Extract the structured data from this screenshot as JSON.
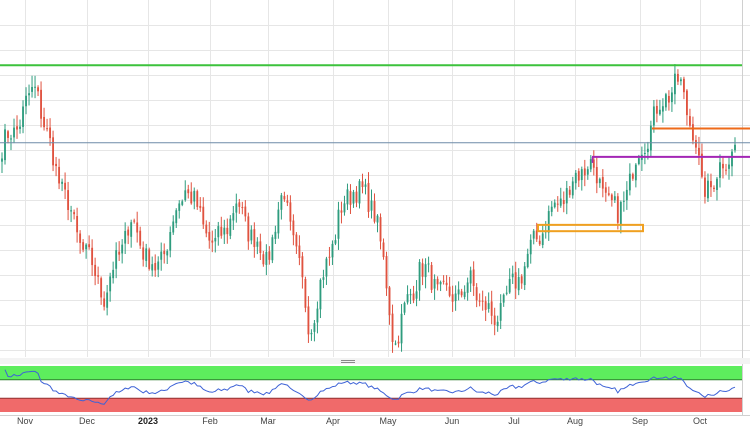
{
  "chart_data": {
    "type": "candlestick",
    "title": "",
    "xlabel": "",
    "ylabel": "",
    "x_axis_labels": [
      "Nov",
      "Dec",
      "2023",
      "Feb",
      "Mar",
      "Apr",
      "May",
      "Jun",
      "Jul",
      "Aug",
      "Sep",
      "Oct"
    ],
    "colors": {
      "bull": "#2e9c7e",
      "bear": "#e0523f",
      "resistance_top": "#3cc23c",
      "resistance_orange": "#ee6a1a",
      "resistance_purple": "#a326b5",
      "current_price": "#6f8ca8",
      "support_zone": "#f0a020",
      "rsi_line": "#3d62d6",
      "rsi_overbought": "#5ded5d",
      "rsi_oversold": "#f06a6a",
      "grid": "#e6e6e6"
    },
    "ylim": [
      0,
      100
    ],
    "rsi_ylim": [
      0,
      100
    ],
    "levels": [
      {
        "kind": "horizontal",
        "value": 92.0,
        "color": "#3cc23c"
      },
      {
        "kind": "horizontal",
        "value": 72.0,
        "color": "#ee6a1a"
      },
      {
        "kind": "horizontal",
        "value": 63.0,
        "color": "#a326b5"
      },
      {
        "kind": "horizontal",
        "value": 67.5,
        "color": "#6f8ca8"
      },
      {
        "kind": "zone",
        "low": 39.5,
        "high": 41.5,
        "color": "#f0a020"
      }
    ],
    "rsi_bands": {
      "overbought": 70,
      "oversold": 30
    },
    "anchors": [
      {
        "t": 0.0,
        "p": 66
      },
      {
        "t": 0.018,
        "p": 72
      },
      {
        "t": 0.047,
        "p": 86
      },
      {
        "t": 0.06,
        "p": 70
      },
      {
        "t": 0.1,
        "p": 40
      },
      {
        "t": 0.14,
        "p": 19
      },
      {
        "t": 0.175,
        "p": 43
      },
      {
        "t": 0.21,
        "p": 26
      },
      {
        "t": 0.25,
        "p": 54
      },
      {
        "t": 0.29,
        "p": 34
      },
      {
        "t": 0.32,
        "p": 48
      },
      {
        "t": 0.36,
        "p": 30
      },
      {
        "t": 0.385,
        "p": 52
      },
      {
        "t": 0.42,
        "p": 9
      },
      {
        "t": 0.46,
        "p": 44
      },
      {
        "t": 0.48,
        "p": 54
      },
      {
        "t": 0.51,
        "p": 46
      },
      {
        "t": 0.535,
        "p": 4
      },
      {
        "t": 0.57,
        "p": 28
      },
      {
        "t": 0.61,
        "p": 18
      },
      {
        "t": 0.64,
        "p": 23
      },
      {
        "t": 0.67,
        "p": 11
      },
      {
        "t": 0.7,
        "p": 23
      },
      {
        "t": 0.74,
        "p": 42
      },
      {
        "t": 0.77,
        "p": 52
      },
      {
        "t": 0.8,
        "p": 62
      },
      {
        "t": 0.82,
        "p": 52
      },
      {
        "t": 0.84,
        "p": 44
      },
      {
        "t": 0.87,
        "p": 65
      },
      {
        "t": 0.905,
        "p": 83
      },
      {
        "t": 0.925,
        "p": 86
      },
      {
        "t": 0.945,
        "p": 70
      },
      {
        "t": 0.955,
        "p": 52
      },
      {
        "t": 0.975,
        "p": 57
      },
      {
        "t": 1.0,
        "p": 67
      }
    ]
  }
}
